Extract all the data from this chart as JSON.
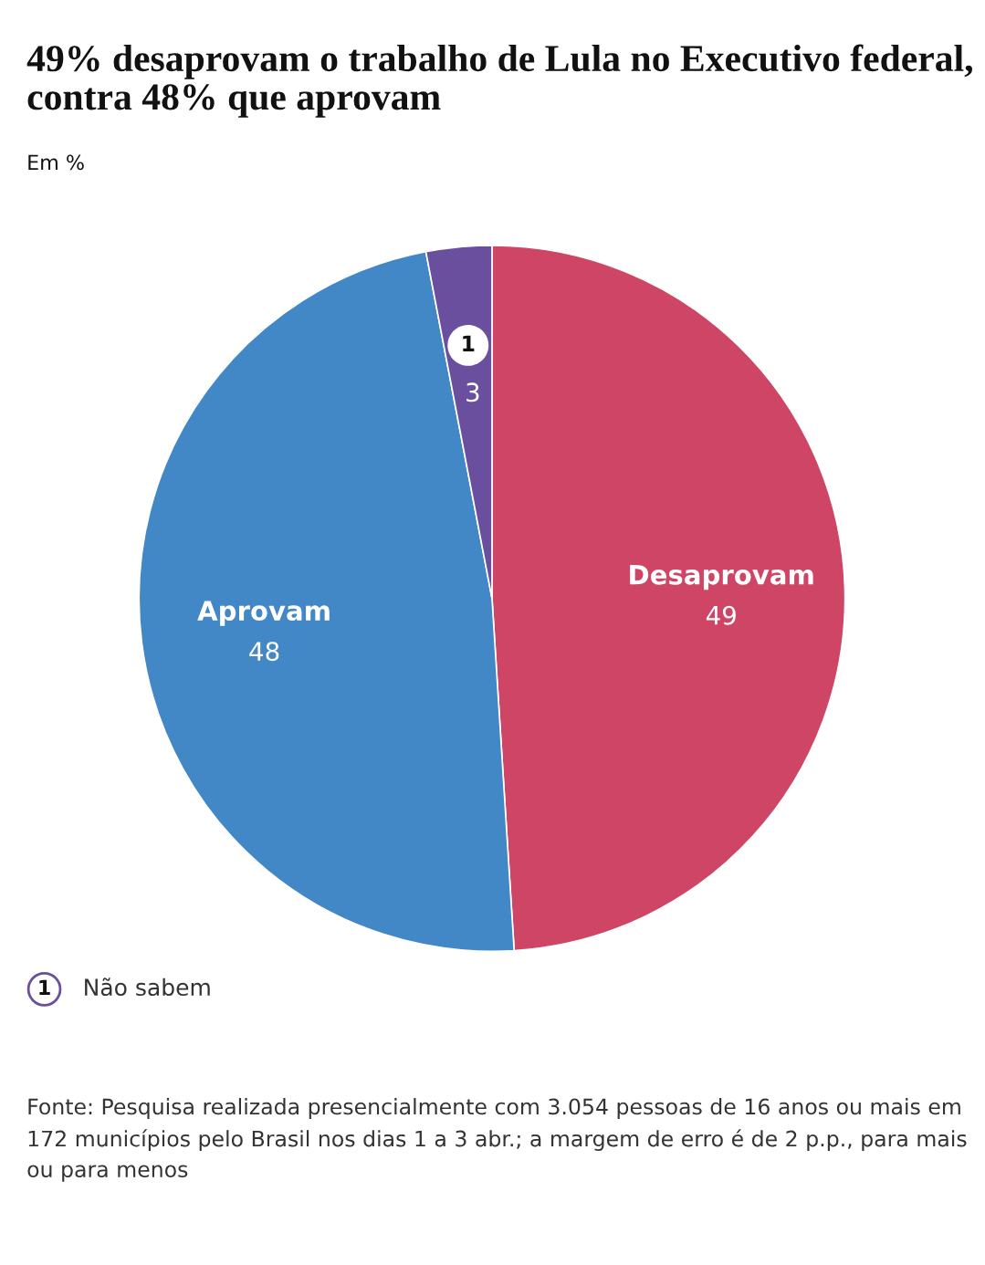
{
  "chart_data": {
    "type": "pie",
    "title": "49% desaprovam o trabalho de Lula no Executivo federal, contra 48% que aprovam",
    "subtitle": "Em %",
    "categories": [
      "Desaprovam",
      "Aprovam",
      "Não sabem"
    ],
    "values": [
      49,
      48,
      3
    ],
    "colors": [
      "#cf4565",
      "#4287c6",
      "#6b4f9f"
    ],
    "data_labels": true,
    "legend": "bottom left",
    "annotations": [
      {
        "text": "1",
        "x": "Não sabem"
      },
      "Fonte: Pesquisa realizada presencialmente com 3.054 pessoas de 16 anos ou mais em 172 municípios pelo Brasil nos dias 1 a 3 abr.; a margem de erro é de 2 p.p., para mais ou para menos"
    ]
  }
}
